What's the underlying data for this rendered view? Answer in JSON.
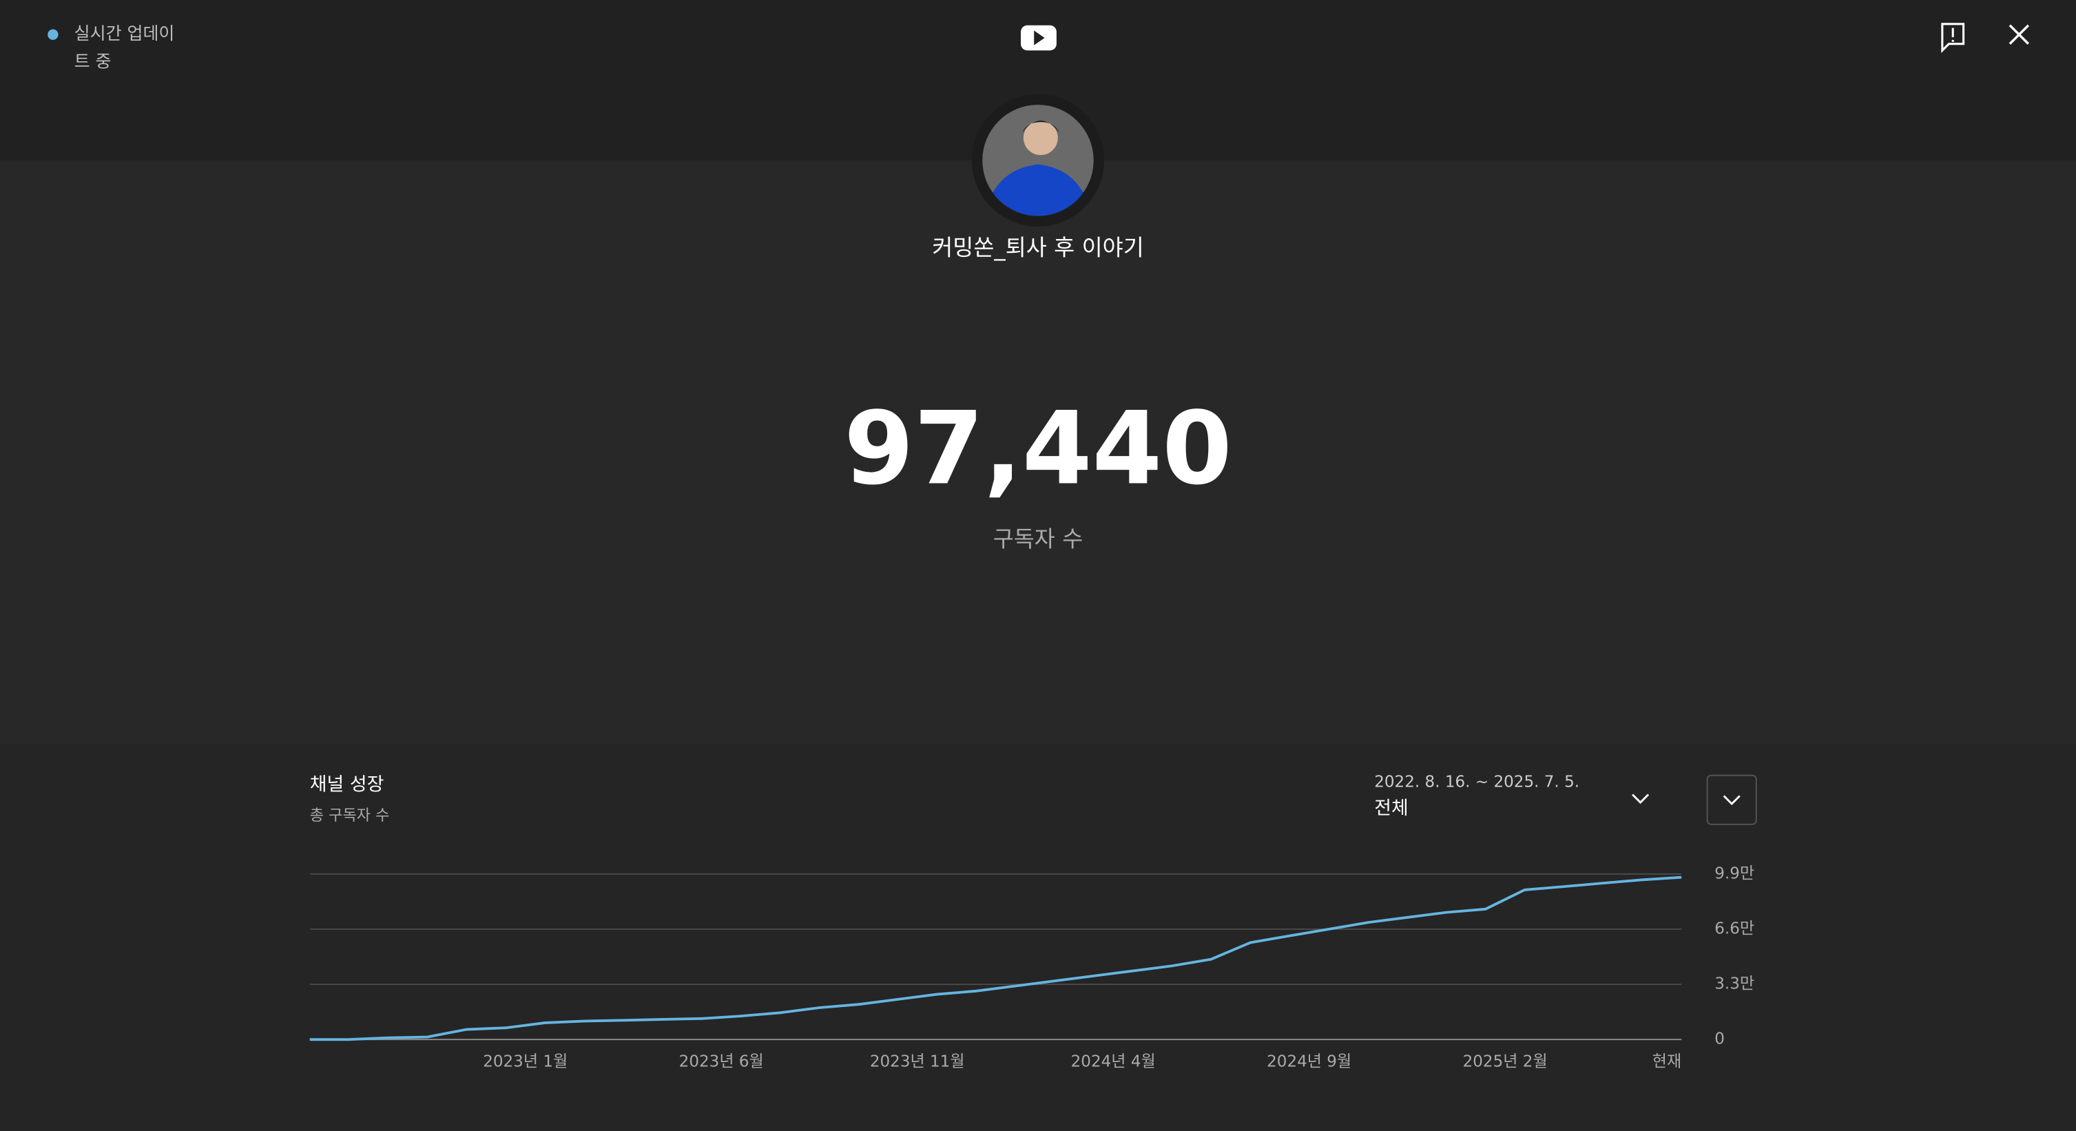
{
  "header": {
    "live_status": [
      "실시간 업데이",
      "트 중"
    ]
  },
  "channel": {
    "name": "커밍쏜_퇴사 후 이야기"
  },
  "subscribers": {
    "count": "97,440",
    "label": "구독자 수"
  },
  "panel": {
    "title": "채널 성장",
    "subtitle": "총 구독자 수",
    "date_range": "2022. 8. 16. ~ 2025. 7. 5.",
    "period": "전체"
  },
  "chart_data": {
    "type": "line",
    "x": [
      "2022-08",
      "2022-09",
      "2022-10",
      "2022-11",
      "2022-12",
      "2023-01",
      "2023-02",
      "2023-03",
      "2023-04",
      "2023-05",
      "2023-06",
      "2023-07",
      "2023-08",
      "2023-09",
      "2023-10",
      "2023-11",
      "2023-12",
      "2024-01",
      "2024-02",
      "2024-03",
      "2024-04",
      "2024-05",
      "2024-06",
      "2024-07",
      "2024-08",
      "2024-09",
      "2024-10",
      "2024-11",
      "2024-12",
      "2025-01",
      "2025-02",
      "2025-03",
      "2025-04",
      "2025-05",
      "2025-06",
      "2025-07"
    ],
    "values": [
      0,
      0,
      1000,
      1500,
      6000,
      7000,
      10000,
      11000,
      11500,
      12000,
      12500,
      14000,
      16000,
      19000,
      21000,
      24000,
      27000,
      29000,
      32000,
      35000,
      38000,
      41000,
      44000,
      48000,
      58000,
      62000,
      66000,
      70000,
      73000,
      76000,
      78000,
      89500,
      91500,
      93500,
      95500,
      97000
    ],
    "color": "#65b5e0",
    "xlim": [
      "2022-08",
      "2025-07"
    ],
    "xticks": [
      {
        "value": "2023-01",
        "label": "2023년 1월"
      },
      {
        "value": "2023-06",
        "label": "2023년 6월"
      },
      {
        "value": "2023-11",
        "label": "2023년 11월"
      },
      {
        "value": "2024-04",
        "label": "2024년 4월"
      },
      {
        "value": "2024-09",
        "label": "2024년 9월"
      },
      {
        "value": "2025-02",
        "label": "2025년 2월"
      },
      {
        "value": "2025-07",
        "label": "현재"
      }
    ],
    "ylim": [
      0,
      99000
    ],
    "yticks": [
      0,
      {
        "value": 33000,
        "label": "3.3만"
      },
      {
        "value": 66000,
        "label": "6.6만"
      },
      {
        "value": 99000,
        "label": "9.9만"
      }
    ],
    "grid": true
  }
}
